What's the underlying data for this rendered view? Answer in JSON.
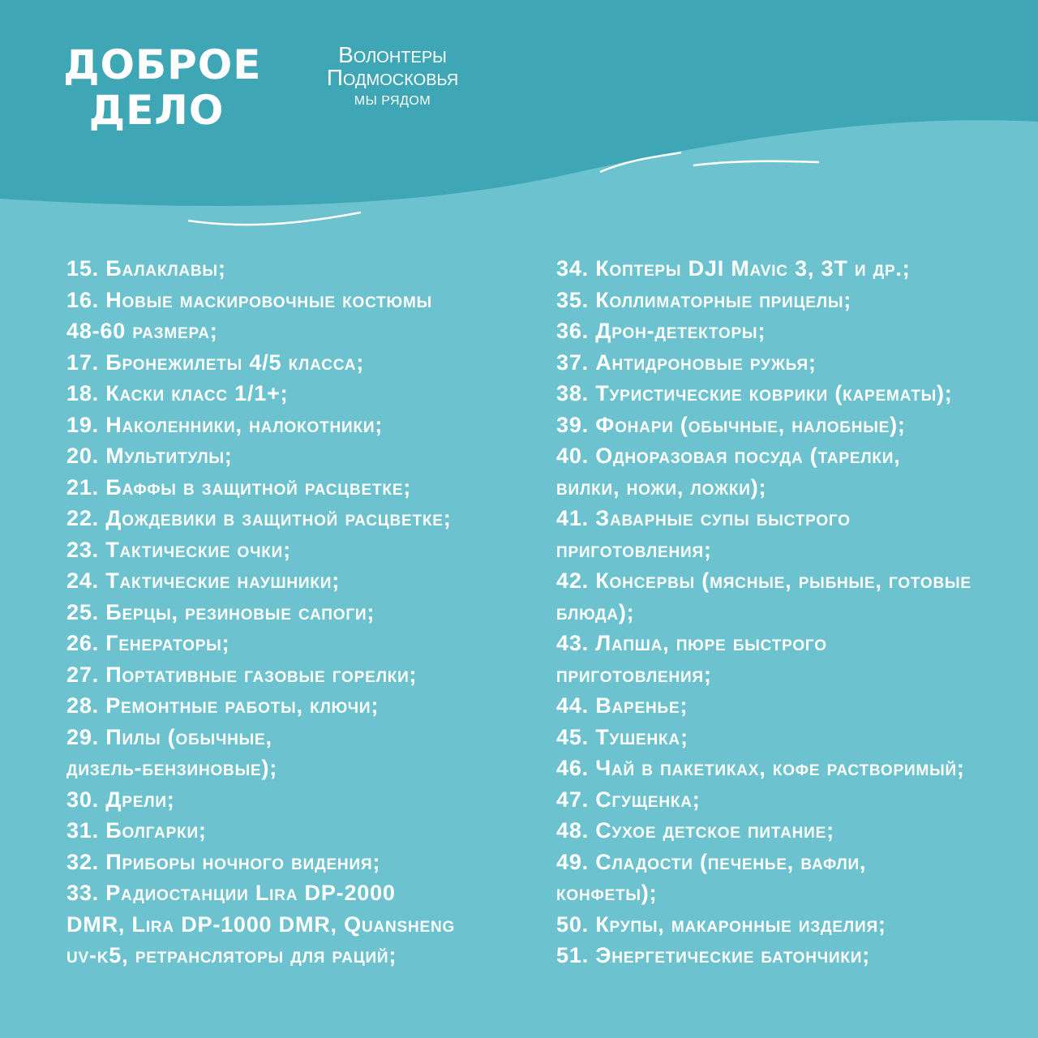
{
  "colors": {
    "header": "#3fa6b6",
    "body": "#6cc3cf",
    "text": "#ffffff"
  },
  "logo": {
    "line1": "ДОБРОЕ",
    "line2": "ДЕЛО"
  },
  "org": {
    "line1": "Волонтеры",
    "line2": "Подмосковья",
    "tagline": "МЫ РЯДОМ"
  },
  "left_items": [
    [
      "15. Балаклавы;"
    ],
    [
      "16. Новые маскировочные костюмы",
      "48-60 размера;"
    ],
    [
      "17. Бронежилеты 4/5 класса;"
    ],
    [
      "18. Каски класс 1/1+;"
    ],
    [
      "19. Наколенники, налокотники;"
    ],
    [
      "20. Мультитулы;"
    ],
    [
      "21. Баффы в защитной расцветке;"
    ],
    [
      "22. Дождевики в защитной расцветке;"
    ],
    [
      "23. Тактические очки;"
    ],
    [
      "24. Тактические наушники;"
    ],
    [
      "25. Берцы, резиновые сапоги;"
    ],
    [
      "26. Генераторы;"
    ],
    [
      "27. Портативные газовые горелки;"
    ],
    [
      "28. Ремонтные работы, ключи;"
    ],
    [
      "29. Пилы (обычные,",
      "дизель-бензиновые);"
    ],
    [
      "30. Дрели;"
    ],
    [
      "31. Болгарки;"
    ],
    [
      "32. Приборы ночного видения;"
    ],
    [
      "33. Радиостанции Lira DP-2000",
      "DMR, Lira DP-1000 DMR, Quansheng",
      "uv-k5, ретрансляторы для раций;"
    ]
  ],
  "right_items": [
    [
      "34. Коптеры DJI Mavic 3, 3T и др.;"
    ],
    [
      "35. Коллиматорные прицелы;"
    ],
    [
      "36. Дрон-детекторы;"
    ],
    [
      "37. Антидроновые ружья;"
    ],
    [
      "38. Туристические коврики (карематы);"
    ],
    [
      "39. Фонари (обычные, налобные);"
    ],
    [
      "40. Одноразовая посуда (тарелки,",
      "вилки, ножи, ложки);"
    ],
    [
      "41. Заварные супы быстрого",
      "приготовления;"
    ],
    [
      "42. Консервы (мясные, рыбные, готовые",
      "блюда);"
    ],
    [
      "43. Лапша, пюре быстрого",
      "приготовления;"
    ],
    [
      "44. Варенье;"
    ],
    [
      "45. Тушенка;"
    ],
    [
      "46. Чай в пакетиках, кофе растворимый;"
    ],
    [
      "47. Сгущенка;"
    ],
    [
      "48. Сухое детское питание;"
    ],
    [
      "49. Сладости (печенье, вафли,",
      "конфеты);"
    ],
    [
      "50. Крупы, макаронные изделия;"
    ],
    [
      "51. Энергетические батончики;"
    ]
  ]
}
